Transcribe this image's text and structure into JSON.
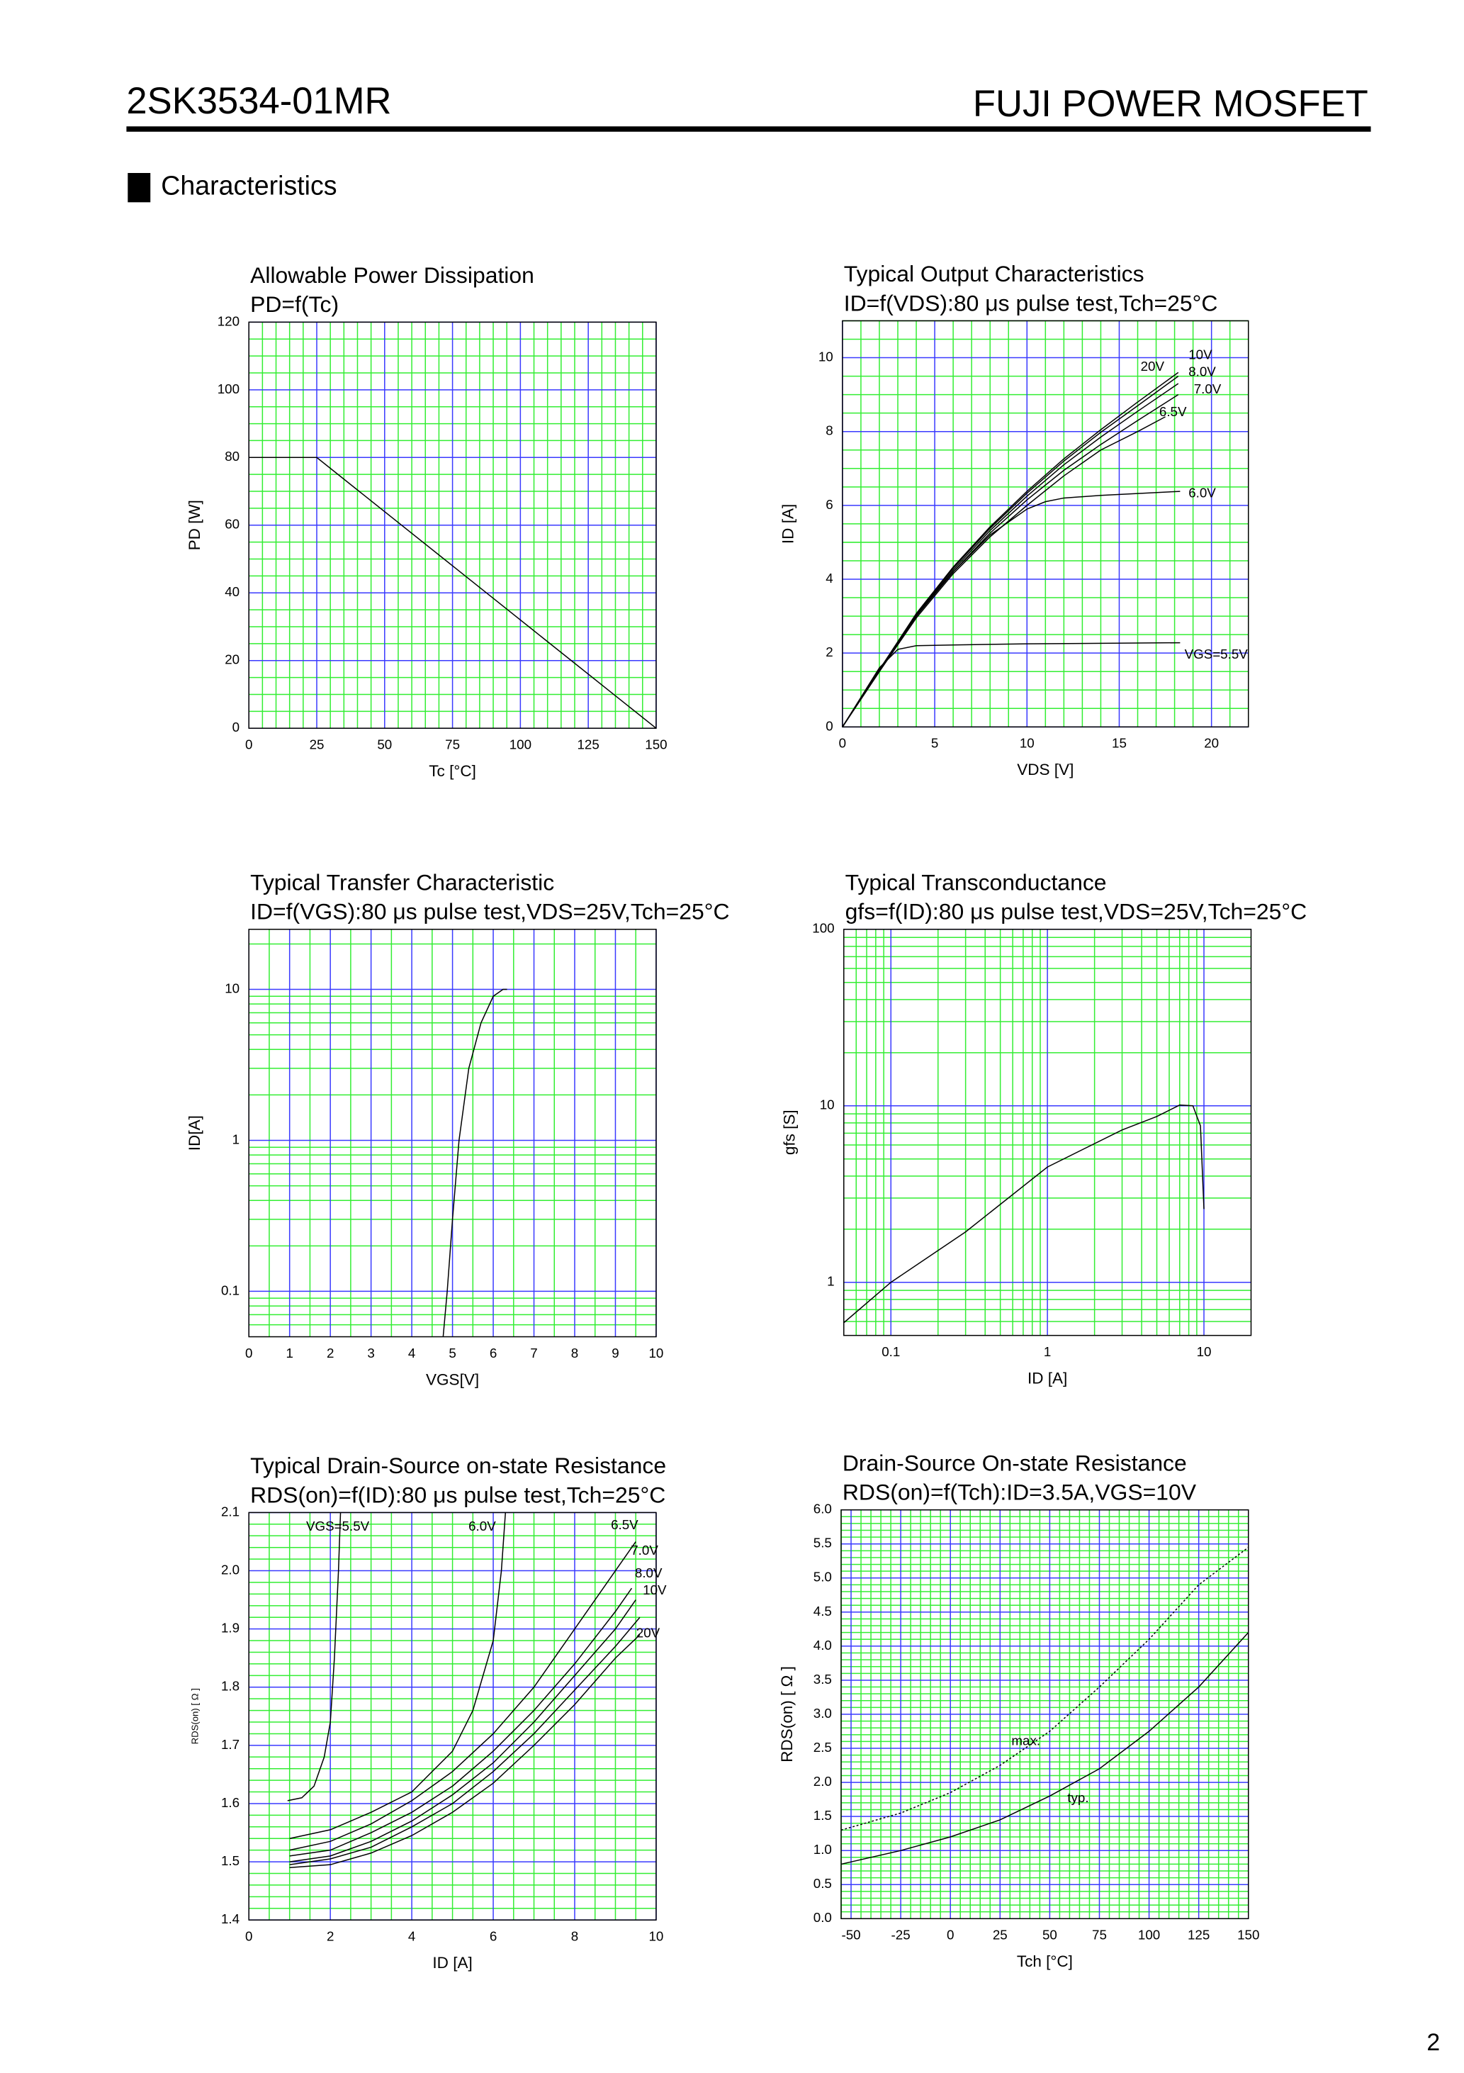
{
  "header": {
    "part": "2SK3534-01MR",
    "brand": "FUJI POWER MOSFET"
  },
  "section": "Characteristics",
  "page_number": "2",
  "chart_data": [
    {
      "type": "line",
      "title": "Allowable Power Dissipation",
      "subtitle": "PD=f(Tc)",
      "xlabel": "Tc [°C]",
      "ylabel": "PD [W]",
      "xlim": [
        0,
        150
      ],
      "ylim": [
        0,
        120
      ],
      "xticks": [
        0,
        25,
        50,
        75,
        100,
        125,
        150
      ],
      "yticks": [
        0,
        20,
        40,
        60,
        80,
        100,
        120
      ],
      "grid": true,
      "minor_divisions": [
        5,
        4
      ],
      "series": [
        {
          "color": "#000000",
          "x": [
            0,
            25,
            150
          ],
          "values": [
            80,
            80,
            0
          ]
        }
      ]
    },
    {
      "type": "line",
      "title": "Typical Output Characteristics",
      "subtitle": "ID=f(VDS):80 μs pulse test,Tch=25°C",
      "xlabel": "VDS [V]",
      "ylabel": "ID [A]",
      "xlim": [
        0,
        22
      ],
      "ylim": [
        0,
        11
      ],
      "xticks": [
        0,
        5,
        10,
        15,
        20
      ],
      "yticks": [
        0,
        2,
        4,
        6,
        8,
        10
      ],
      "grid": true,
      "minor_divisions": [
        5,
        4
      ],
      "series": [
        {
          "name": "VGS=5.5V",
          "color": "#000000",
          "x": [
            0,
            1,
            2,
            3,
            4,
            6,
            10,
            18.3
          ],
          "values": [
            0,
            0.8,
            1.6,
            2.1,
            2.2,
            2.22,
            2.25,
            2.28
          ]
        },
        {
          "name": "6.0V",
          "color": "#000000",
          "x": [
            0,
            2,
            4,
            6,
            8,
            10,
            11,
            12,
            14,
            18.3
          ],
          "values": [
            0,
            1.5,
            3.0,
            4.2,
            5.2,
            5.9,
            6.1,
            6.2,
            6.27,
            6.38
          ]
        },
        {
          "name": "6.5V",
          "color": "#000000",
          "x": [
            0,
            2,
            4,
            6,
            8,
            10,
            12,
            14,
            16,
            17.5
          ],
          "values": [
            0,
            1.5,
            2.95,
            4.15,
            5.15,
            6.0,
            6.8,
            7.5,
            8.0,
            8.4
          ]
        },
        {
          "name": "7.0V",
          "color": "#000000",
          "x": [
            0,
            2,
            4,
            6,
            8,
            10,
            12,
            14,
            16,
            18.2
          ],
          "values": [
            0,
            1.52,
            3.0,
            4.2,
            5.25,
            6.15,
            6.95,
            7.65,
            8.3,
            9.0
          ]
        },
        {
          "name": "8.0V",
          "color": "#000000",
          "x": [
            0,
            2,
            4,
            6,
            8,
            10,
            12,
            14,
            16,
            18.2
          ],
          "values": [
            0,
            1.53,
            3.02,
            4.25,
            5.32,
            6.25,
            7.1,
            7.85,
            8.55,
            9.3
          ]
        },
        {
          "name": "10V",
          "color": "#000000",
          "x": [
            0,
            2,
            4,
            6,
            8,
            10,
            12,
            14,
            16,
            18.2
          ],
          "values": [
            0,
            1.54,
            3.05,
            4.3,
            5.38,
            6.33,
            7.2,
            7.98,
            8.7,
            9.5
          ]
        },
        {
          "name": "20V",
          "color": "#000000",
          "x": [
            0,
            2,
            4,
            6,
            8,
            10,
            12,
            14,
            16,
            18.2
          ],
          "values": [
            0,
            1.55,
            3.07,
            4.33,
            5.42,
            6.38,
            7.26,
            8.05,
            8.8,
            9.6
          ]
        }
      ]
    },
    {
      "type": "line",
      "title": "Typical Transfer Characteristic",
      "subtitle": "ID=f(VGS):80 μs pulse test,VDS=25V,Tch=25°C",
      "xlabel": "VGS[V]",
      "ylabel": "ID[A]",
      "xlim": [
        0,
        10
      ],
      "ylim": [
        0.05,
        25
      ],
      "ylog": true,
      "xticks": [
        0,
        1,
        2,
        3,
        4,
        5,
        6,
        7,
        8,
        9,
        10
      ],
      "yticks": [
        0.1,
        1,
        10
      ],
      "grid": true,
      "minor_divisions": [
        2,
        9
      ],
      "series": [
        {
          "color": "#000000",
          "x": [
            4.77,
            4.87,
            5.0,
            5.16,
            5.4,
            5.7,
            6.0,
            6.24,
            6.34
          ],
          "values": [
            0.05,
            0.1,
            0.3,
            1,
            3,
            6,
            9,
            10,
            10
          ]
        }
      ]
    },
    {
      "type": "line",
      "title": "Typical Transconductance",
      "subtitle": "gfs=f(ID):80 μs pulse test,VDS=25V,Tch=25°C",
      "xlabel": "ID [A]",
      "ylabel": "gfs [S]",
      "xlim": [
        0.05,
        20
      ],
      "ylim": [
        0.5,
        100
      ],
      "xlog": true,
      "ylog": true,
      "xticks": [
        0.1,
        1,
        10
      ],
      "yticks": [
        1,
        10,
        100
      ],
      "grid": true,
      "minor_divisions": [
        9,
        9
      ],
      "series": [
        {
          "color": "#000000",
          "x": [
            0.05,
            0.1,
            0.3,
            1,
            3,
            5,
            7,
            8.5,
            9.5,
            10
          ],
          "values": [
            0.59,
            1.0,
            1.93,
            4.5,
            7.3,
            8.7,
            10.1,
            10,
            7.7,
            2.6
          ]
        }
      ]
    },
    {
      "type": "line",
      "title": "Typical Drain-Source on-state Resistance",
      "subtitle": "RDS(on)=f(ID):80  μs pulse test,Tch=25°C",
      "xlabel": "ID [A]",
      "ylabel": "RDS(on) [ Ω ]",
      "xlim": [
        0,
        10
      ],
      "ylim": [
        1.4,
        2.1
      ],
      "xticks": [
        0,
        2,
        4,
        6,
        8,
        10
      ],
      "yticks": [
        1.4,
        1.5,
        1.6,
        1.7,
        1.8,
        1.9,
        {
          "value": 2,
          "label": "2.0"
        },
        2.1
      ],
      "grid": true,
      "minor_divisions": [
        4,
        5
      ],
      "series": [
        {
          "name": "VGS=5.5V",
          "color": "#000000",
          "x": [
            0.95,
            1.3,
            1.6,
            1.85,
            2.0,
            2.1,
            2.2,
            2.25
          ],
          "values": [
            1.605,
            1.61,
            1.63,
            1.68,
            1.74,
            1.85,
            2.0,
            2.1
          ]
        },
        {
          "name": "6.0V",
          "color": "#000000",
          "x": [
            1,
            2,
            3,
            4,
            5,
            5.5,
            6,
            6.2,
            6.3
          ],
          "values": [
            1.54,
            1.555,
            1.585,
            1.62,
            1.69,
            1.76,
            1.88,
            2.0,
            2.1
          ]
        },
        {
          "name": "6.5V",
          "color": "#000000",
          "x": [
            1,
            2,
            3,
            4,
            5,
            6,
            7,
            8,
            9,
            9.5
          ],
          "values": [
            1.52,
            1.535,
            1.565,
            1.605,
            1.655,
            1.72,
            1.8,
            1.9,
            2.0,
            2.05
          ]
        },
        {
          "name": "7.0V",
          "color": "#000000",
          "x": [
            1,
            2,
            3,
            4,
            5,
            6,
            7,
            8,
            9,
            9.4
          ],
          "values": [
            1.51,
            1.52,
            1.55,
            1.585,
            1.63,
            1.69,
            1.76,
            1.84,
            1.93,
            1.97
          ]
        },
        {
          "name": "8.0V",
          "color": "#000000",
          "x": [
            1,
            2,
            3,
            4,
            5,
            6,
            7,
            8,
            9,
            9.5
          ],
          "values": [
            1.5,
            1.51,
            1.535,
            1.57,
            1.615,
            1.67,
            1.74,
            1.82,
            1.9,
            1.95
          ]
        },
        {
          "name": "10V",
          "color": "#000000",
          "x": [
            1,
            2,
            3,
            4,
            5,
            6,
            7,
            8,
            9,
            9.6
          ],
          "values": [
            1.495,
            1.505,
            1.525,
            1.56,
            1.6,
            1.655,
            1.72,
            1.795,
            1.87,
            1.92
          ]
        },
        {
          "name": "20V",
          "color": "#000000",
          "x": [
            1,
            2,
            3,
            4,
            5,
            6,
            7,
            8,
            9,
            9.6
          ],
          "values": [
            1.49,
            1.495,
            1.515,
            1.545,
            1.585,
            1.635,
            1.7,
            1.77,
            1.85,
            1.89
          ]
        }
      ]
    },
    {
      "type": "line",
      "title": "Drain-Source On-state Resistance",
      "subtitle": "RDS(on)=f(Tch):ID=3.5A,VGS=10V",
      "xlabel": "Tch [°C]",
      "ylabel": "RDS(on) [ Ω ]",
      "xlim": [
        -55,
        150
      ],
      "ylim": [
        0,
        6
      ],
      "xticks": [
        -50,
        -25,
        0,
        25,
        50,
        75,
        100,
        125,
        150
      ],
      "yticks": [
        {
          "value": 0,
          "label": "0.0"
        },
        0.5,
        {
          "value": 1,
          "label": "1.0"
        },
        1.5,
        {
          "value": 2,
          "label": "2.0"
        },
        2.5,
        {
          "value": 3,
          "label": "3.0"
        },
        3.5,
        {
          "value": 4,
          "label": "4.0"
        },
        4.5,
        {
          "value": 5,
          "label": "5.0"
        },
        5.5,
        {
          "value": 6,
          "label": "6.0"
        }
      ],
      "grid": true,
      "minor_divisions": [
        5,
        5
      ],
      "series": [
        {
          "name": "max.",
          "color": "#000000",
          "linestyle": "dotted",
          "x": [
            -55,
            -25,
            0,
            25,
            50,
            75,
            100,
            125,
            150
          ],
          "values": [
            1.3,
            1.55,
            1.85,
            2.25,
            2.75,
            3.4,
            4.1,
            4.9,
            5.45
          ]
        },
        {
          "name": "typ.",
          "color": "#000000",
          "x": [
            -55,
            -25,
            0,
            25,
            50,
            75,
            100,
            125,
            150
          ],
          "values": [
            0.8,
            1.0,
            1.2,
            1.45,
            1.8,
            2.2,
            2.75,
            3.4,
            4.2
          ]
        }
      ]
    }
  ]
}
